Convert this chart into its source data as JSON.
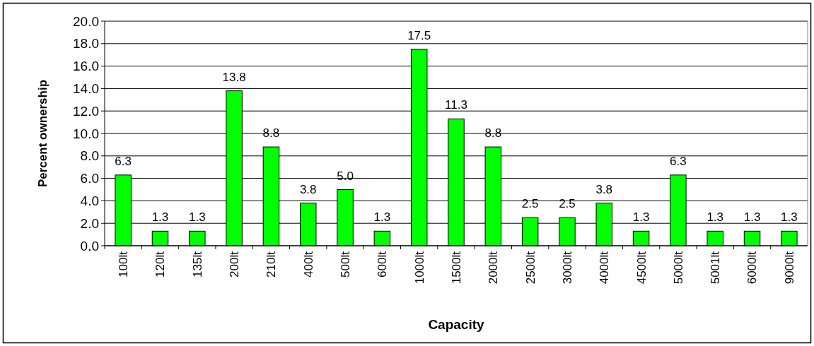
{
  "chart_data": {
    "type": "bar",
    "xlabel": "Capacity",
    "ylabel": "Percent ownership",
    "categories": [
      "100lt",
      "120lt",
      "135lt",
      "200lt",
      "210lt",
      "400lt",
      "500lt",
      "600lt",
      "1000lt",
      "1500lt",
      "2000lt",
      "2500lt",
      "3000lt",
      "4000lt",
      "4500lt",
      "5000lt",
      "5001lt",
      "6000lt",
      "9000lt"
    ],
    "values": [
      6.3,
      1.3,
      1.3,
      13.8,
      8.8,
      3.8,
      5.0,
      1.3,
      17.5,
      11.3,
      8.8,
      2.5,
      2.5,
      3.8,
      1.3,
      6.3,
      1.3,
      1.3,
      1.3
    ],
    "value_labels": [
      "6.3",
      "1.3",
      "1.3",
      "13.8",
      "8.8",
      "3.8",
      "5.0",
      "1.3",
      "17.5",
      "11.3",
      "8.8",
      "2.5",
      "2.5",
      "3.8",
      "1.3",
      "6.3",
      "1.3",
      "1.3",
      "1.3"
    ],
    "color": "#00ff00",
    "ylim": [
      0,
      20
    ],
    "yticks": [
      {
        "value": 0,
        "label": "0.0"
      },
      {
        "value": 2,
        "label": "2.0"
      },
      {
        "value": 4,
        "label": "4.0"
      },
      {
        "value": 6,
        "label": "6.0"
      },
      {
        "value": 8,
        "label": "8.0"
      },
      {
        "value": 10,
        "label": "10.0"
      },
      {
        "value": 12,
        "label": "12.0"
      },
      {
        "value": 14,
        "label": "14.0"
      },
      {
        "value": 16,
        "label": "16.0"
      },
      {
        "value": 18,
        "label": "18.0"
      },
      {
        "value": 20,
        "label": "20.0"
      }
    ],
    "grid": "y"
  }
}
